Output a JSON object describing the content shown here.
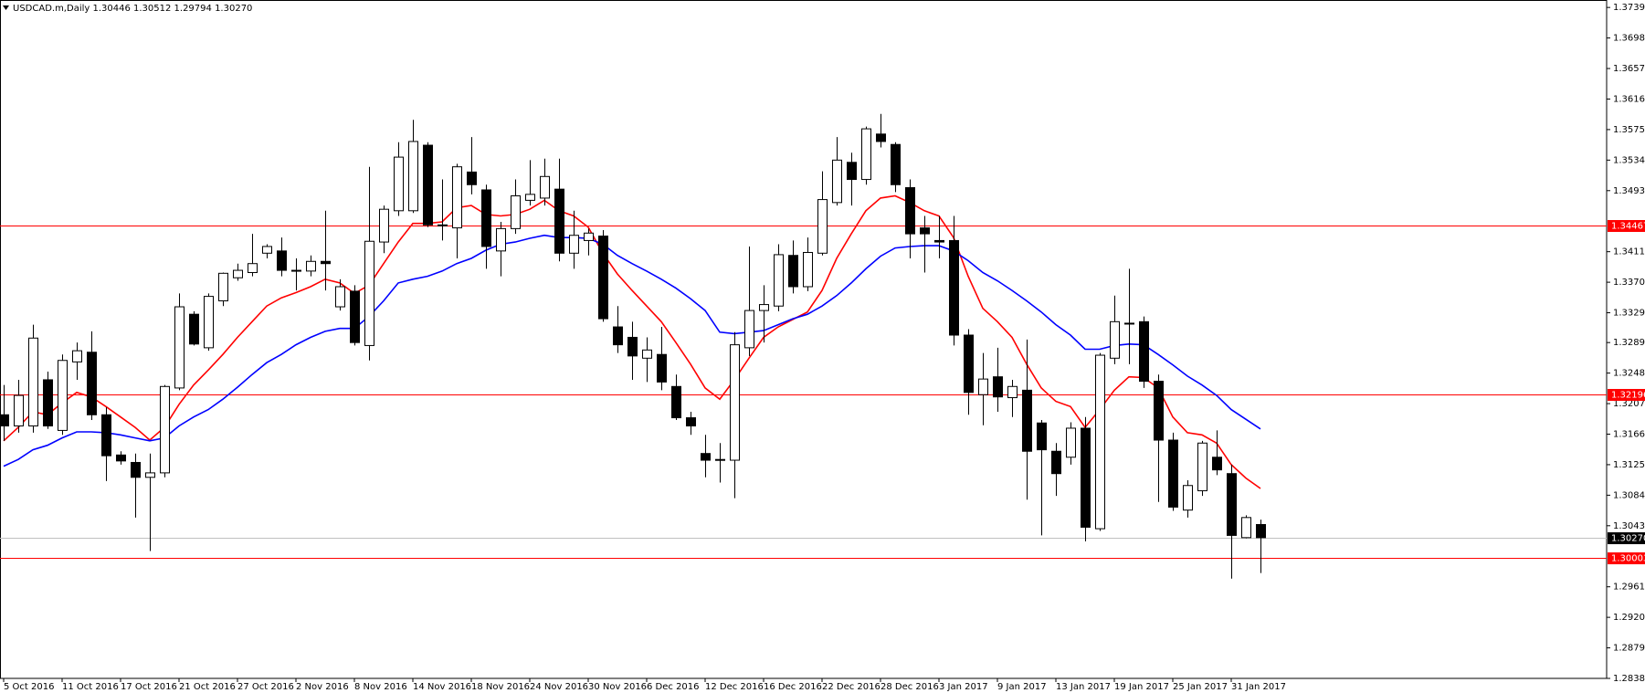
{
  "chart_data": {
    "type": "candlestick",
    "title": "USDCAD.m,Daily  1.30446 1.30512 1.29794 1.30270",
    "categories": [
      "5 Oct 2016",
      null,
      null,
      null,
      "11 Oct 2016",
      null,
      null,
      null,
      "17 Oct 2016",
      null,
      null,
      null,
      "21 Oct 2016",
      null,
      null,
      null,
      "27 Oct 2016",
      null,
      null,
      null,
      "2 Nov 2016",
      null,
      null,
      null,
      "8 Nov 2016",
      null,
      null,
      null,
      "14 Nov 2016",
      null,
      null,
      null,
      "18 Nov 2016",
      null,
      null,
      null,
      "24 Nov 2016",
      null,
      null,
      null,
      "30 Nov 2016",
      null,
      null,
      null,
      "6 Dec 2016",
      null,
      null,
      null,
      "12 Dec 2016",
      null,
      null,
      null,
      "16 Dec 2016",
      null,
      null,
      null,
      "22 Dec 2016",
      null,
      null,
      null,
      "28 Dec 2016",
      null,
      null,
      null,
      "3 Jan 2017",
      null,
      null,
      null,
      "9 Jan 2017",
      null,
      null,
      null,
      "13 Jan 2017",
      null,
      null,
      null,
      "19 Jan 2017",
      null,
      null,
      null,
      "25 Jan 2017",
      null,
      null,
      null,
      "31 Jan 2017",
      null,
      null
    ],
    "open": [
      1.3192,
      1.3177,
      1.3177,
      1.3239,
      1.3171,
      1.3263,
      1.3276,
      1.3192,
      1.3138,
      1.3128,
      1.3108,
      1.3114,
      1.3228,
      1.3327,
      1.3282,
      1.3345,
      1.3376,
      1.3383,
      1.3409,
      1.3412,
      1.3386,
      1.3385,
      1.3398,
      1.3337,
      1.3358,
      1.3285,
      1.3424,
      1.3466,
      1.3466,
      1.3554,
      1.3447,
      1.3443,
      1.3518,
      1.3494,
      1.3412,
      1.3442,
      1.348,
      1.3483,
      1.3495,
      1.3409,
      1.3426,
      1.3432,
      1.331,
      1.3296,
      1.3268,
      1.3273,
      1.323,
      1.3188,
      1.314,
      1.3131,
      1.3131,
      1.3282,
      1.3332,
      1.3338,
      1.3406,
      1.3364,
      1.3409,
      1.3477,
      1.3531,
      1.3508,
      1.3569,
      1.3555,
      1.3497,
      1.3443,
      1.3426,
      1.3426,
      1.3299,
      1.3219,
      1.3243,
      1.3215,
      1.3225,
      1.3181,
      1.3143,
      1.3135,
      1.3174,
      1.3039,
      1.3268,
      1.3314,
      1.3317,
      1.3237,
      1.3158,
      1.3064,
      1.309,
      1.3135,
      1.3113,
      1.3027,
      1.30446
    ],
    "high": [
      1.3232,
      1.3239,
      1.3313,
      1.325,
      1.3273,
      1.3289,
      1.3304,
      1.3202,
      1.3143,
      1.314,
      1.314,
      1.3232,
      1.3355,
      1.3331,
      1.3355,
      1.3383,
      1.3395,
      1.3435,
      1.3421,
      1.343,
      1.3402,
      1.3406,
      1.3466,
      1.3374,
      1.3366,
      1.3525,
      1.3473,
      1.3558,
      1.3588,
      1.3558,
      1.3508,
      1.3529,
      1.3565,
      1.3501,
      1.3451,
      1.3508,
      1.3534,
      1.3536,
      1.3536,
      1.3466,
      1.3442,
      1.344,
      1.3338,
      1.3317,
      1.3296,
      1.331,
      1.3246,
      1.3196,
      1.3165,
      1.3154,
      1.3303,
      1.3418,
      1.3366,
      1.3421,
      1.3426,
      1.343,
      1.3519,
      1.3565,
      1.3544,
      1.3579,
      1.3596,
      1.3558,
      1.3508,
      1.3459,
      1.3459,
      1.3459,
      1.3307,
      1.3275,
      1.3282,
      1.3239,
      1.3293,
      1.3185,
      1.3154,
      1.3182,
      1.3189,
      1.3275,
      1.3352,
      1.3388,
      1.3324,
      1.3246,
      1.3168,
      1.3104,
      1.3157,
      1.3171,
      1.3125,
      1.3057,
      1.30512
    ],
    "low": [
      1.3157,
      1.3168,
      1.3168,
      1.3173,
      1.3165,
      1.3239,
      1.3185,
      1.3103,
      1.3125,
      1.3054,
      1.3009,
      1.3108,
      1.3225,
      1.3285,
      1.3278,
      1.3338,
      1.3372,
      1.3378,
      1.3402,
      1.3378,
      1.3359,
      1.3378,
      1.3359,
      1.3332,
      1.3285,
      1.3265,
      1.3409,
      1.3459,
      1.3463,
      1.3444,
      1.3426,
      1.3402,
      1.3488,
      1.3388,
      1.3378,
      1.3435,
      1.3473,
      1.3473,
      1.3398,
      1.3388,
      1.3406,
      1.3317,
      1.3275,
      1.3239,
      1.3236,
      1.3225,
      1.3185,
      1.3165,
      1.3108,
      1.3101,
      1.308,
      1.3271,
      1.3289,
      1.3331,
      1.3355,
      1.3358,
      1.3406,
      1.3473,
      1.3473,
      1.3501,
      1.3551,
      1.3491,
      1.3402,
      1.3383,
      1.3402,
      1.3285,
      1.3192,
      1.3178,
      1.3196,
      1.3189,
      1.3078,
      1.303,
      1.3083,
      1.3125,
      1.3022,
      1.3036,
      1.326,
      1.326,
      1.3228,
      1.3075,
      1.3063,
      1.3054,
      1.3083,
      1.3111,
      1.2972,
      1.3026,
      1.29794
    ],
    "close": [
      1.3177,
      1.3218,
      1.3295,
      1.3177,
      1.3265,
      1.3278,
      1.3192,
      1.3137,
      1.313,
      1.3108,
      1.3114,
      1.323,
      1.3337,
      1.3287,
      1.3351,
      1.3382,
      1.3386,
      1.3395,
      1.3418,
      1.3386,
      1.3385,
      1.3398,
      1.3395,
      1.3364,
      1.3289,
      1.3425,
      1.3468,
      1.3538,
      1.3559,
      1.3447,
      1.3446,
      1.3525,
      1.3501,
      1.3418,
      1.3442,
      1.3486,
      1.3488,
      1.3512,
      1.3409,
      1.3433,
      1.3436,
      1.3321,
      1.3286,
      1.3271,
      1.3279,
      1.3236,
      1.3188,
      1.3177,
      1.3131,
      1.3132,
      1.3286,
      1.3332,
      1.334,
      1.3407,
      1.3364,
      1.341,
      1.3481,
      1.3534,
      1.3508,
      1.3576,
      1.3559,
      1.3501,
      1.3435,
      1.3435,
      1.3424,
      1.3299,
      1.3222,
      1.324,
      1.3216,
      1.323,
      1.3143,
      1.3145,
      1.3113,
      1.3174,
      1.3041,
      1.3272,
      1.3317,
      1.3315,
      1.3237,
      1.3158,
      1.3068,
      1.3097,
      1.3154,
      1.3118,
      1.303,
      1.3054,
      1.3027
    ],
    "up_color": "#ffffff",
    "down_color": "#000000",
    "moving_averages": [
      {
        "color": "#ff0000",
        "values": [
          1.3157,
          1.3175,
          1.3196,
          1.3192,
          1.3208,
          1.3222,
          1.3216,
          1.3203,
          1.3189,
          1.3175,
          1.3158,
          1.3175,
          1.3206,
          1.3232,
          1.3252,
          1.3273,
          1.3296,
          1.3317,
          1.3338,
          1.3349,
          1.3356,
          1.3364,
          1.3374,
          1.3369,
          1.3355,
          1.3366,
          1.3395,
          1.3424,
          1.3449,
          1.3449,
          1.3451,
          1.347,
          1.3473,
          1.3461,
          1.3459,
          1.3461,
          1.3468,
          1.348,
          1.3466,
          1.3459,
          1.3444,
          1.3409,
          1.3381,
          1.3359,
          1.3338,
          1.3317,
          1.3289,
          1.326,
          1.3228,
          1.3213,
          1.3239,
          1.3268,
          1.3296,
          1.331,
          1.332,
          1.333,
          1.3359,
          1.3402,
          1.3435,
          1.3466,
          1.3483,
          1.3486,
          1.3477,
          1.3466,
          1.3459,
          1.343,
          1.3378,
          1.3335,
          1.3317,
          1.3296,
          1.326,
          1.3228,
          1.321,
          1.3203,
          1.3175,
          1.3199,
          1.3225,
          1.3243,
          1.3242,
          1.3228,
          1.3189,
          1.3168,
          1.3165,
          1.3154,
          1.3125,
          1.3107,
          1.3093
        ]
      },
      {
        "color": "#0000ff",
        "values": [
          1.3123,
          1.3132,
          1.3145,
          1.3151,
          1.3161,
          1.3169,
          1.3169,
          1.3168,
          1.3165,
          1.3161,
          1.3157,
          1.3161,
          1.3177,
          1.3189,
          1.3199,
          1.3213,
          1.3229,
          1.3246,
          1.3262,
          1.3273,
          1.3286,
          1.3296,
          1.3304,
          1.3308,
          1.3308,
          1.3324,
          1.3345,
          1.3369,
          1.3374,
          1.3378,
          1.3385,
          1.3395,
          1.3402,
          1.3413,
          1.3421,
          1.3424,
          1.3429,
          1.3433,
          1.343,
          1.343,
          1.3429,
          1.3421,
          1.3406,
          1.3395,
          1.3385,
          1.3374,
          1.3362,
          1.3348,
          1.3332,
          1.3303,
          1.3301,
          1.3303,
          1.3305,
          1.3313,
          1.3321,
          1.3327,
          1.3338,
          1.3352,
          1.3369,
          1.3388,
          1.3405,
          1.3416,
          1.3418,
          1.3419,
          1.3419,
          1.3412,
          1.3399,
          1.3383,
          1.3372,
          1.3359,
          1.3345,
          1.333,
          1.3313,
          1.3299,
          1.328,
          1.328,
          1.3285,
          1.3287,
          1.3286,
          1.3273,
          1.3259,
          1.3244,
          1.3232,
          1.3218,
          1.3199,
          1.3186,
          1.3173
        ]
      }
    ],
    "levels": [
      {
        "value": 1.34467,
        "color": "#ff0000"
      },
      {
        "value": 1.32196,
        "color": "#ff0000"
      },
      {
        "value": 1.30003,
        "color": "#ff0000"
      }
    ],
    "price_line": {
      "value": 1.3027,
      "label": "1.30270",
      "color": "#c0c0c0"
    },
    "ylim": [
      1.2838,
      1.3749
    ],
    "yticks": [
      {
        "value": 1.3739,
        "label": "1.37390"
      },
      {
        "value": 1.3698,
        "label": "1.36980"
      },
      {
        "value": 1.3657,
        "label": "1.36570"
      },
      {
        "value": 1.3616,
        "label": "1.36160"
      },
      {
        "value": 1.3575,
        "label": "1.35750"
      },
      {
        "value": 1.3534,
        "label": "1.35340"
      },
      {
        "value": 1.3493,
        "label": "1.34930"
      },
      {
        "value": 1.3411,
        "label": "1.34110"
      },
      {
        "value": 1.337,
        "label": "1.33700"
      },
      {
        "value": 1.3329,
        "label": "1.33290"
      },
      {
        "value": 1.3289,
        "label": "1.32890"
      },
      {
        "value": 1.3248,
        "label": "1.32480"
      },
      {
        "value": 1.3207,
        "label": "1.32070"
      },
      {
        "value": 1.3166,
        "label": "1.31660"
      },
      {
        "value": 1.3125,
        "label": "1.31250"
      },
      {
        "value": 1.3084,
        "label": "1.30840"
      },
      {
        "value": 1.3043,
        "label": "1.30430"
      },
      {
        "value": 1.2961,
        "label": "1.29610"
      },
      {
        "value": 1.292,
        "label": "1.29200"
      },
      {
        "value": 1.2879,
        "label": "1.28790"
      },
      {
        "value": 1.2838,
        "label": "1.28380"
      }
    ],
    "grid": false
  }
}
